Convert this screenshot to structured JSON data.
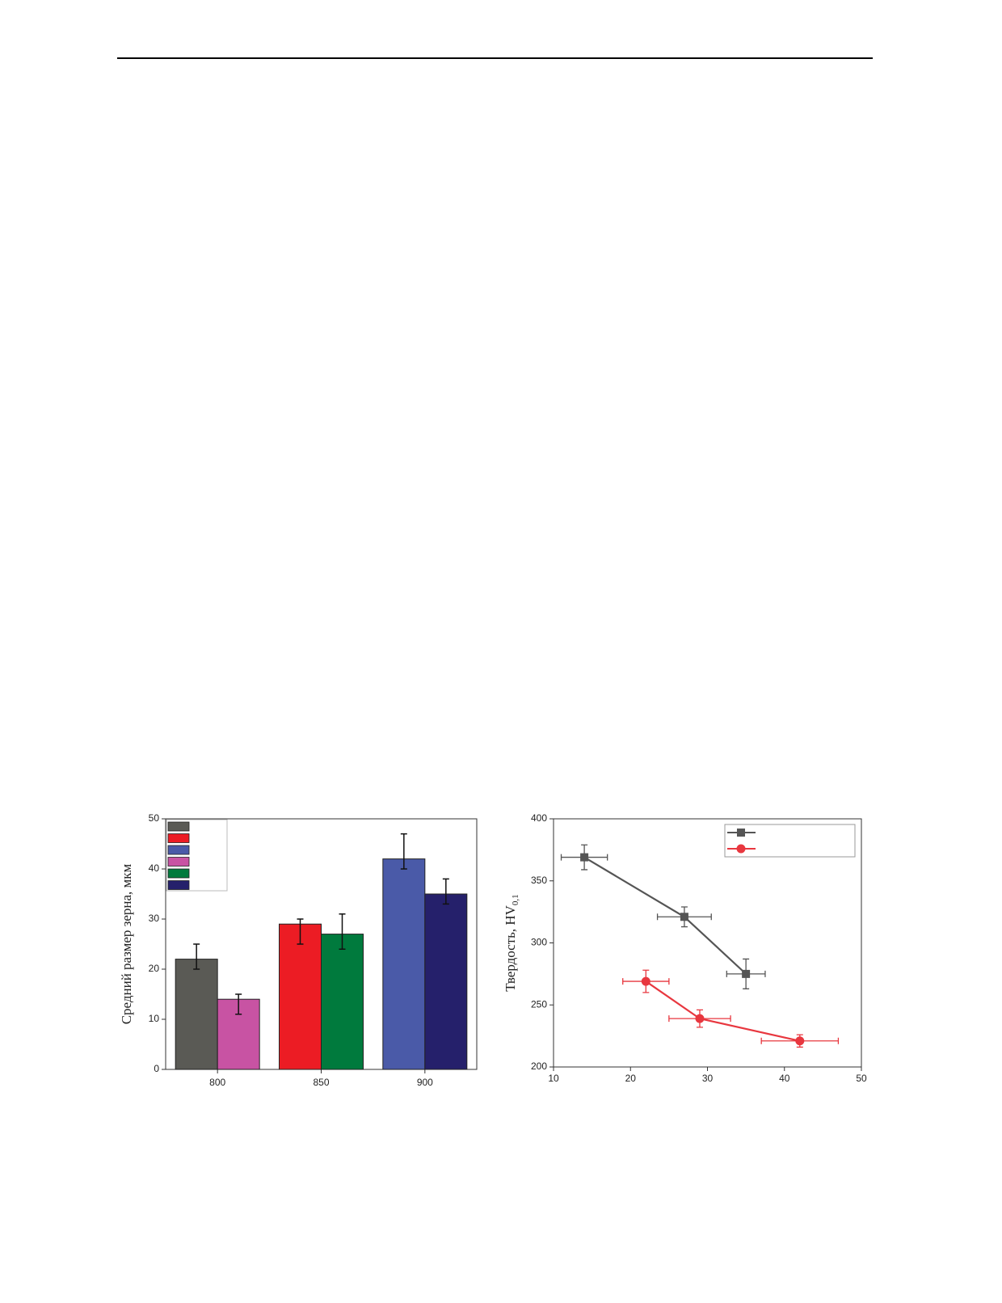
{
  "chart_data": [
    {
      "type": "bar",
      "ylabel": "Средний размер зерна, мкм",
      "categories": [
        "800",
        "850",
        "900"
      ],
      "series": [
        {
          "color": "#5a5a55",
          "values": [
            22,
            null,
            null
          ],
          "errors": [
            [
              2,
              3
            ],
            null,
            null
          ]
        },
        {
          "color": "#ec1c24",
          "values": [
            null,
            29,
            null
          ],
          "errors": [
            null,
            [
              4,
              1
            ],
            null
          ]
        },
        {
          "color": "#4a5aa8",
          "values": [
            null,
            null,
            42
          ],
          "errors": [
            null,
            null,
            [
              2,
              5
            ]
          ]
        },
        {
          "color": "#c853a3",
          "values": [
            14,
            null,
            null
          ],
          "errors": [
            [
              3,
              1
            ],
            null,
            null
          ]
        },
        {
          "color": "#007a3d",
          "values": [
            null,
            27,
            null
          ],
          "errors": [
            null,
            [
              3,
              4
            ],
            null
          ]
        },
        {
          "color": "#25206b",
          "values": [
            null,
            null,
            35
          ],
          "errors": [
            null,
            null,
            [
              2,
              3
            ]
          ]
        }
      ],
      "ylim": [
        0,
        50
      ],
      "yticks": [
        0,
        10,
        20,
        30,
        40,
        50
      ],
      "legend": "top-left"
    },
    {
      "type": "line",
      "ylabel": "Твердость, HV",
      "ylabel_subscript": "0,1",
      "series": [
        {
          "color": "#555555",
          "marker": "square",
          "x": [
            14,
            27,
            35
          ],
          "values": [
            369,
            321,
            275
          ],
          "xerr": [
            3,
            3.5,
            2.5
          ],
          "yerr": [
            10,
            8,
            12
          ]
        },
        {
          "color": "#e8373f",
          "marker": "circle",
          "x": [
            22,
            29,
            42
          ],
          "values": [
            269,
            239,
            221
          ],
          "xerr": [
            3,
            4,
            5
          ],
          "yerr": [
            9,
            7,
            5
          ]
        }
      ],
      "xlim": [
        10,
        50
      ],
      "xticks": [
        10,
        20,
        30,
        40,
        50
      ],
      "ylim": [
        200,
        400
      ],
      "yticks": [
        200,
        250,
        300,
        350,
        400
      ],
      "legend": "top-right"
    }
  ]
}
